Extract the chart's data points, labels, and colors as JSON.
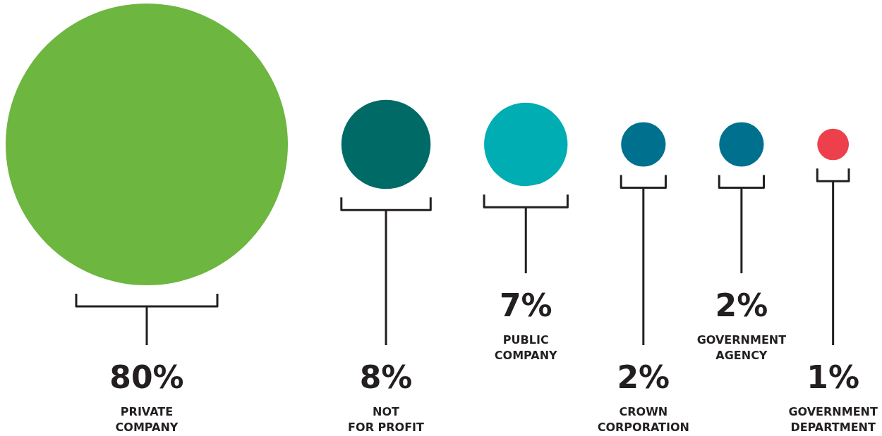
{
  "chart_data": {
    "type": "other",
    "categories": [
      "PRIVATE\nCOMPANY",
      "NOT\nFOR PROFIT",
      "PUBLIC\nCOMPANY",
      "CROWN\nCORPORATION",
      "GOVERNMENT\nAGENCY",
      "GOVERNMENT\nDEPARTMENT"
    ],
    "values": [
      80,
      8,
      7,
      2,
      2,
      1
    ],
    "value_labels": [
      "80%",
      "8%",
      "7%",
      "2%",
      "2%",
      "1%"
    ],
    "colors": [
      "#6db63f",
      "#006a66",
      "#00adb2",
      "#00708f",
      "#00708f",
      "#ee3f4d"
    ]
  }
}
